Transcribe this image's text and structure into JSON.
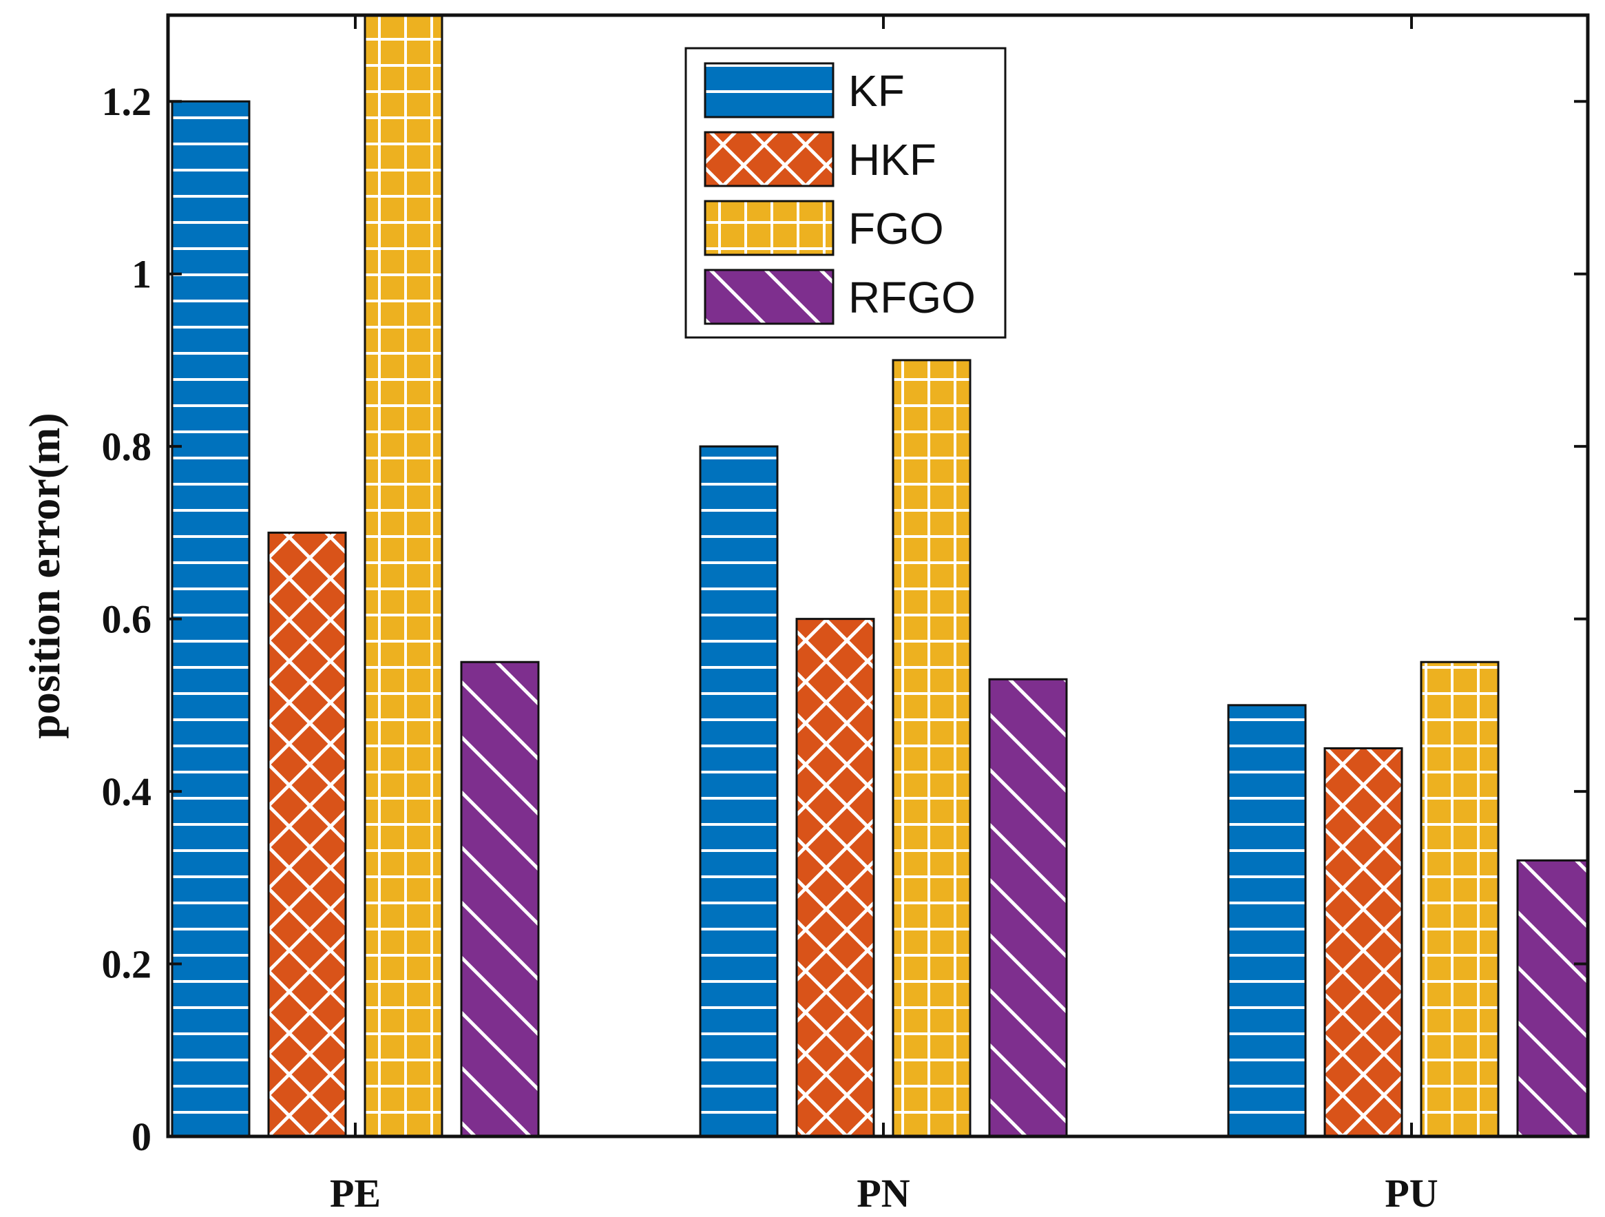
{
  "chart_data": {
    "type": "bar",
    "title": "",
    "xlabel": "",
    "ylabel": "position error(m)",
    "categories": [
      "PE",
      "PN",
      "PU"
    ],
    "ylim": [
      0,
      1.3
    ],
    "yticks": [
      0,
      0.2,
      0.4,
      0.6,
      0.8,
      1,
      1.2
    ],
    "ytick_labels": [
      "0",
      "0.2",
      "0.4",
      "0.6",
      "0.8",
      "1",
      "1.2"
    ],
    "legend_position": "top-center",
    "grid": false,
    "series": [
      {
        "name": "KF",
        "values": [
          1.2,
          0.8,
          0.5
        ],
        "color": "#0072BD",
        "pattern": "horizontal-lines"
      },
      {
        "name": "HKF",
        "values": [
          0.7,
          0.6,
          0.45
        ],
        "color": "#D95319",
        "pattern": "crosshatch-diagonal"
      },
      {
        "name": "FGO",
        "values": [
          1.3,
          0.9,
          0.55
        ],
        "color": "#EDB120",
        "pattern": "grid"
      },
      {
        "name": "RFGO",
        "values": [
          0.55,
          0.53,
          0.32
        ],
        "color": "#7E2F8E",
        "pattern": "back-diagonal"
      }
    ]
  }
}
